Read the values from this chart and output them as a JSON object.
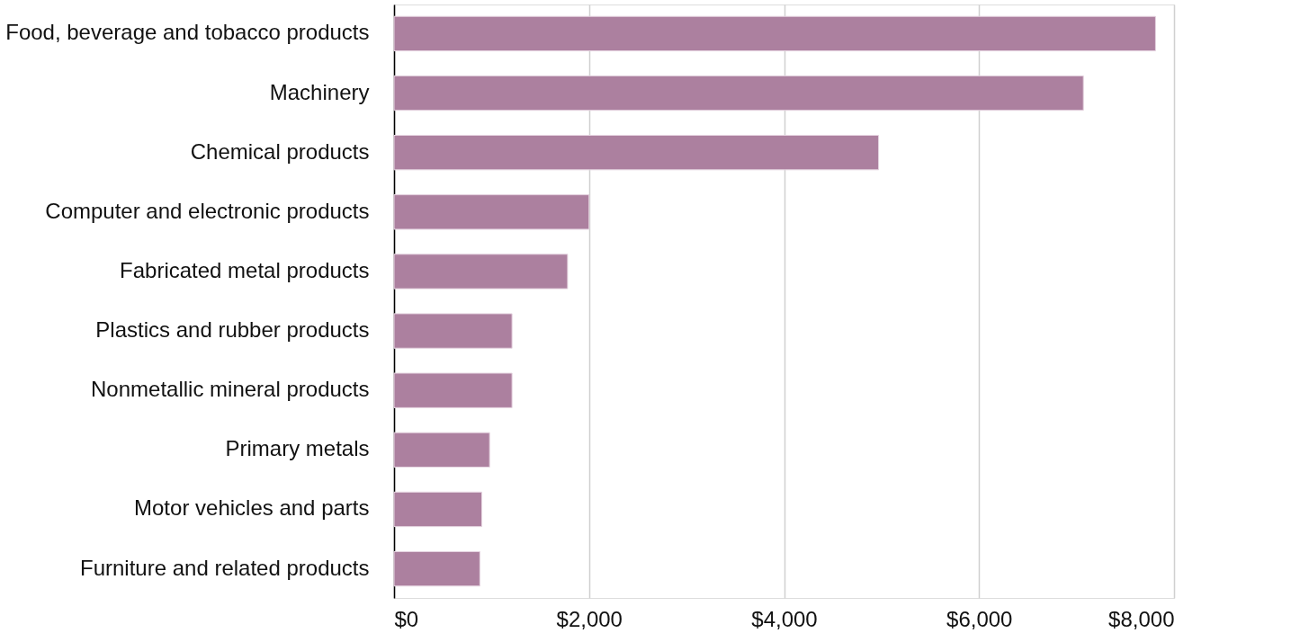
{
  "chart_data": {
    "type": "bar",
    "orientation": "horizontal",
    "categories": [
      "Food, beverage and tobacco products",
      "Machinery",
      "Chemical products",
      "Computer and electronic products",
      "Fabricated metal products",
      "Plastics and rubber products",
      "Nonmetallic mineral products",
      "Primary metals",
      "Motor vehicles and parts",
      "Furniture and related products"
    ],
    "values": [
      7810,
      7070,
      4970,
      2000,
      1780,
      1210,
      1210,
      980,
      900,
      880
    ],
    "color": "#ac809f",
    "xlim": [
      0,
      8000
    ],
    "xticks": [
      {
        "value": 0,
        "label": "$0"
      },
      {
        "value": 2000,
        "label": "$2,000"
      },
      {
        "value": 4000,
        "label": "$4,000"
      },
      {
        "value": 6000,
        "label": "$6,000"
      },
      {
        "value": 8000,
        "label": "$8,000"
      }
    ],
    "grid": "x"
  }
}
